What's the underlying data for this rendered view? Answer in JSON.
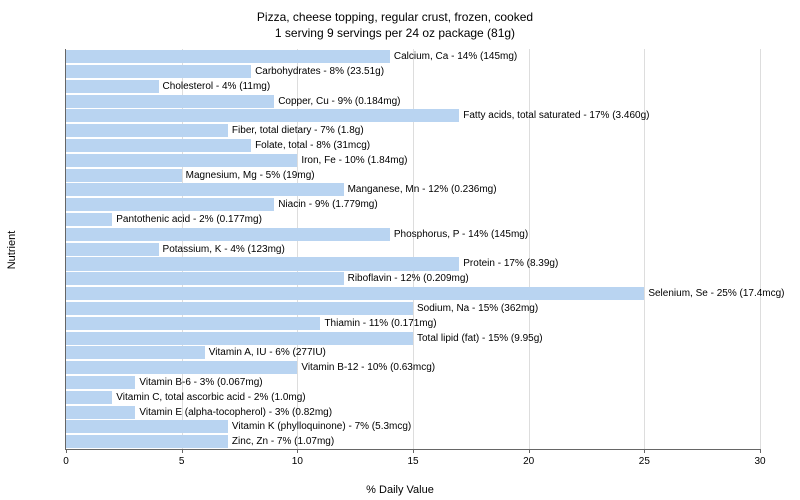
{
  "title_line1": "Pizza, cheese topping, regular crust, frozen, cooked",
  "title_line2": "1 serving 9 servings per 24 oz package (81g)",
  "y_axis_label": "Nutrient",
  "x_axis_label": "% Daily Value",
  "chart": {
    "type": "bar-horizontal",
    "xlim": [
      0,
      30
    ],
    "xtick_step": 5,
    "bar_color": "#b9d4f1",
    "grid_color": "#dddddd",
    "axis_color": "#666666",
    "background_color": "#ffffff",
    "label_fontsize": 10,
    "bars": [
      {
        "label": "Calcium, Ca - 14% (145mg)",
        "value": 14
      },
      {
        "label": "Carbohydrates - 8% (23.51g)",
        "value": 8
      },
      {
        "label": "Cholesterol - 4% (11mg)",
        "value": 4
      },
      {
        "label": "Copper, Cu - 9% (0.184mg)",
        "value": 9
      },
      {
        "label": "Fatty acids, total saturated - 17% (3.460g)",
        "value": 17
      },
      {
        "label": "Fiber, total dietary - 7% (1.8g)",
        "value": 7
      },
      {
        "label": "Folate, total - 8% (31mcg)",
        "value": 8
      },
      {
        "label": "Iron, Fe - 10% (1.84mg)",
        "value": 10
      },
      {
        "label": "Magnesium, Mg - 5% (19mg)",
        "value": 5
      },
      {
        "label": "Manganese, Mn - 12% (0.236mg)",
        "value": 12
      },
      {
        "label": "Niacin - 9% (1.779mg)",
        "value": 9
      },
      {
        "label": "Pantothenic acid - 2% (0.177mg)",
        "value": 2
      },
      {
        "label": "Phosphorus, P - 14% (145mg)",
        "value": 14
      },
      {
        "label": "Potassium, K - 4% (123mg)",
        "value": 4
      },
      {
        "label": "Protein - 17% (8.39g)",
        "value": 17
      },
      {
        "label": "Riboflavin - 12% (0.209mg)",
        "value": 12
      },
      {
        "label": "Selenium, Se - 25% (17.4mcg)",
        "value": 25
      },
      {
        "label": "Sodium, Na - 15% (362mg)",
        "value": 15
      },
      {
        "label": "Thiamin - 11% (0.171mg)",
        "value": 11
      },
      {
        "label": "Total lipid (fat) - 15% (9.95g)",
        "value": 15
      },
      {
        "label": "Vitamin A, IU - 6% (277IU)",
        "value": 6
      },
      {
        "label": "Vitamin B-12 - 10% (0.63mcg)",
        "value": 10
      },
      {
        "label": "Vitamin B-6 - 3% (0.067mg)",
        "value": 3
      },
      {
        "label": "Vitamin C, total ascorbic acid - 2% (1.0mg)",
        "value": 2
      },
      {
        "label": "Vitamin E (alpha-tocopherol) - 3% (0.82mg)",
        "value": 3
      },
      {
        "label": "Vitamin K (phylloquinone) - 7% (5.3mcg)",
        "value": 7
      },
      {
        "label": "Zinc, Zn - 7% (1.07mg)",
        "value": 7
      }
    ],
    "xticks": [
      {
        "value": 0,
        "label": "0"
      },
      {
        "value": 5,
        "label": "5"
      },
      {
        "value": 10,
        "label": "10"
      },
      {
        "value": 15,
        "label": "15"
      },
      {
        "value": 20,
        "label": "20"
      },
      {
        "value": 25,
        "label": "25"
      },
      {
        "value": 30,
        "label": "30"
      }
    ]
  }
}
